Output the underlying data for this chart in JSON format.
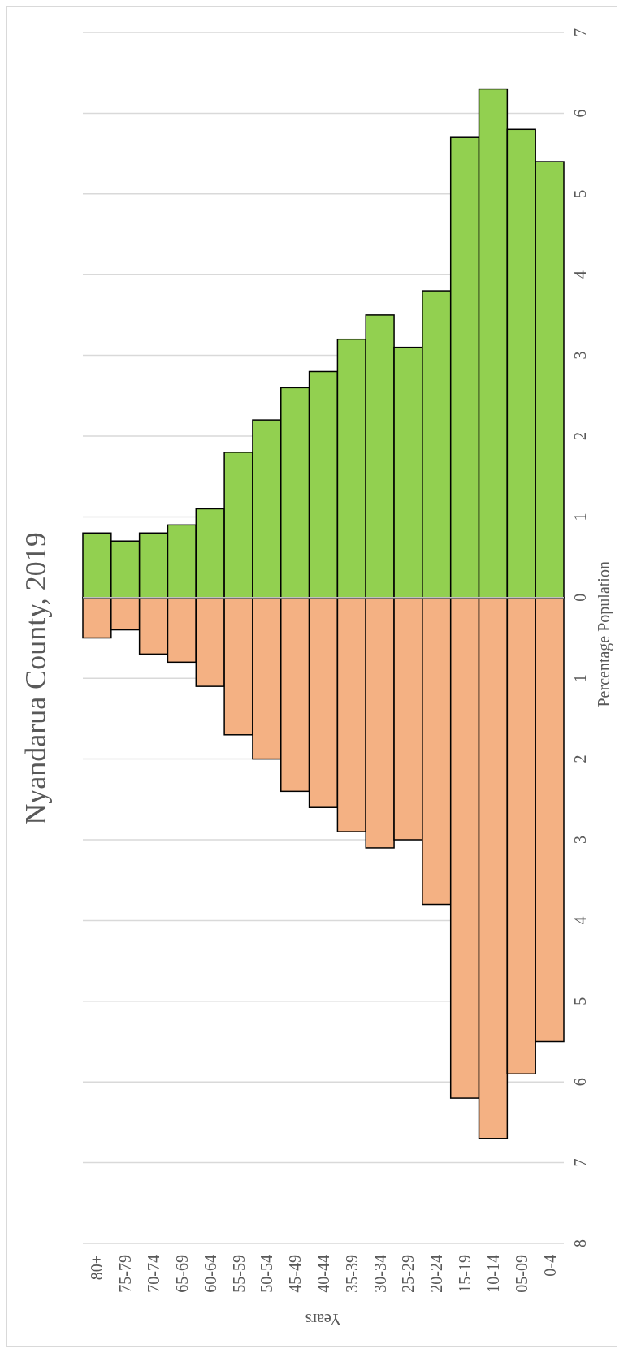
{
  "chart_data": {
    "type": "bar",
    "stacked": true,
    "title": "Nyandarua County, 2019",
    "ylabel": "Percentage Population",
    "xlabel": "Years",
    "categories": [
      "80+",
      "75-79",
      "70-74",
      "65-69",
      "60-64",
      "55-59",
      "50-54",
      "45-49",
      "40-44",
      "35-39",
      "30-34",
      "25-29",
      "20-24",
      "15-19",
      "10-14",
      "05-09",
      "0-4"
    ],
    "series": [
      {
        "color": "#f4b183",
        "values": [
          -0.5,
          -0.4,
          -0.7,
          -0.8,
          -1.1,
          -1.7,
          -2.0,
          -2.4,
          -2.6,
          -2.9,
          -3.1,
          -3.0,
          -3.8,
          -6.2,
          -6.7,
          -5.9,
          -5.5
        ]
      },
      {
        "color": "#92d050",
        "values": [
          0.8,
          0.7,
          0.8,
          0.9,
          1.1,
          1.8,
          2.2,
          2.6,
          2.8,
          3.2,
          3.5,
          3.1,
          3.8,
          5.7,
          6.3,
          5.8,
          5.4
        ]
      }
    ],
    "ylim": [
      -8,
      7
    ],
    "yticks": [
      {
        "value": -8,
        "label": "8"
      },
      {
        "value": -7,
        "label": "7"
      },
      {
        "value": -6,
        "label": "6"
      },
      {
        "value": -5,
        "label": "5"
      },
      {
        "value": -4,
        "label": "4"
      },
      {
        "value": -3,
        "label": "3"
      },
      {
        "value": -2,
        "label": "2"
      },
      {
        "value": -1,
        "label": "1"
      },
      0,
      1,
      2,
      3,
      4,
      5,
      6,
      7
    ],
    "grid": "y"
  }
}
